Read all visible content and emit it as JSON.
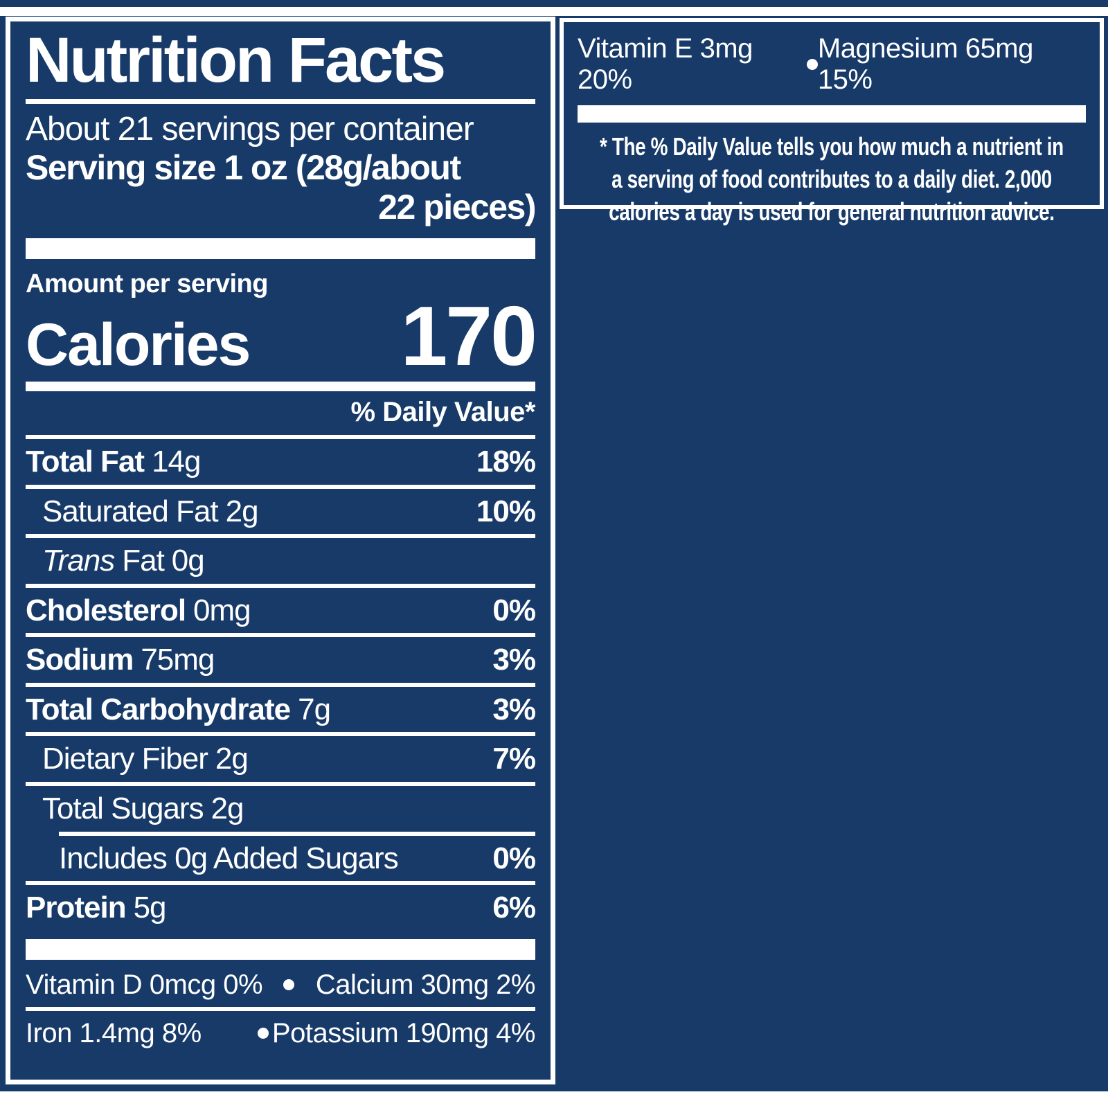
{
  "colors": {
    "background": "#173a68",
    "text": "#ffffff"
  },
  "left_panel": {
    "title": "Nutrition Facts",
    "servings_per_container": "About 21 servings per container",
    "serving_size_lines": [
      "Serving size 1 oz (28g/about",
      "22 pieces)"
    ],
    "amount_per_serving": "Amount per serving",
    "calories_label": "Calories",
    "calories_value": "170",
    "daily_value_header": "% Daily Value*",
    "rows": [
      {
        "label": "Total Fat",
        "amount": "14g",
        "dv": "18%"
      },
      {
        "label": "Saturated Fat",
        "amount": "2g",
        "dv": "10%"
      },
      {
        "label_italic": "Trans",
        "label": "Fat",
        "amount": "0g",
        "dv": ""
      },
      {
        "label": "Cholesterol",
        "amount": "0mg",
        "dv": "0%"
      },
      {
        "label": "Sodium",
        "amount": "75mg",
        "dv": "3%"
      },
      {
        "label": "Total Carbohydrate",
        "amount": "7g",
        "dv": "3%"
      },
      {
        "label": "Dietary Fiber",
        "amount": "2g",
        "dv": "7%"
      },
      {
        "label": "Total Sugars",
        "amount": "2g",
        "dv": ""
      },
      {
        "label": "Includes 0g Added Sugars",
        "amount": "",
        "dv": "0%"
      },
      {
        "label": "Protein",
        "amount": "5g",
        "dv": "6%"
      }
    ],
    "micro_rows": [
      {
        "left": "Vitamin D 0mcg 0%",
        "right": "Calcium 30mg 2%"
      },
      {
        "left": "Iron 1.4mg 8%",
        "right": "Potassium 190mg 4%"
      }
    ]
  },
  "right_panel": {
    "vitamin_row": {
      "left": "Vitamin E 3mg 20%",
      "right": "Magnesium 65mg 15%"
    },
    "footnote_lines": [
      "* The % Daily Value tells you how much a nutrient in",
      "a serving of food contributes to a daily diet. 2,000",
      "calories a day is used for general nutrition advice."
    ]
  }
}
